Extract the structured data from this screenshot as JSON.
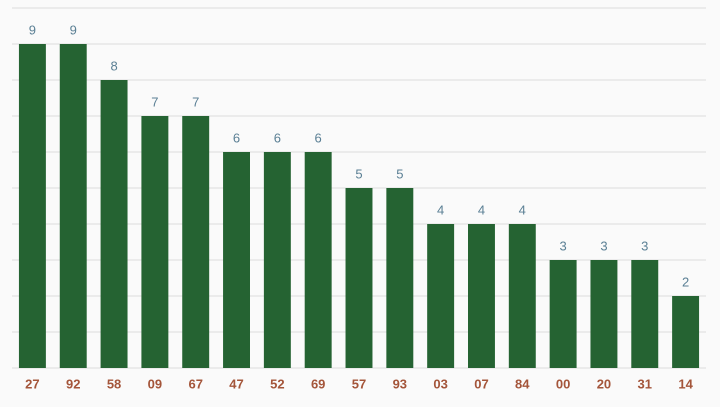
{
  "chart_data": {
    "type": "bar",
    "categories": [
      "27",
      "92",
      "58",
      "09",
      "67",
      "47",
      "52",
      "69",
      "57",
      "93",
      "03",
      "07",
      "84",
      "00",
      "20",
      "31",
      "14"
    ],
    "values": [
      9,
      9,
      8,
      7,
      7,
      6,
      6,
      6,
      5,
      5,
      4,
      4,
      4,
      3,
      3,
      3,
      2
    ],
    "color": "#256332",
    "ylim": [
      0,
      10
    ],
    "yticks": [
      0,
      1,
      2,
      3,
      4,
      5,
      6,
      7,
      8,
      9,
      10
    ],
    "grid": true
  }
}
